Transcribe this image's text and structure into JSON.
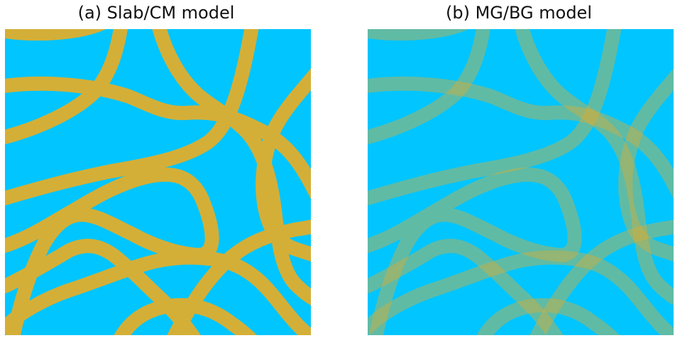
{
  "panels": [
    {
      "title": "(a) Slab/CM model",
      "background_color": "#00c5ff",
      "fiber_color": "#d4af37",
      "fiber_opacity": 1
    },
    {
      "title": "(b) MG/BG model",
      "background_color": "#00c5ff",
      "fiber_color": "#d4af37",
      "fiber_opacity": 0.45
    }
  ]
}
